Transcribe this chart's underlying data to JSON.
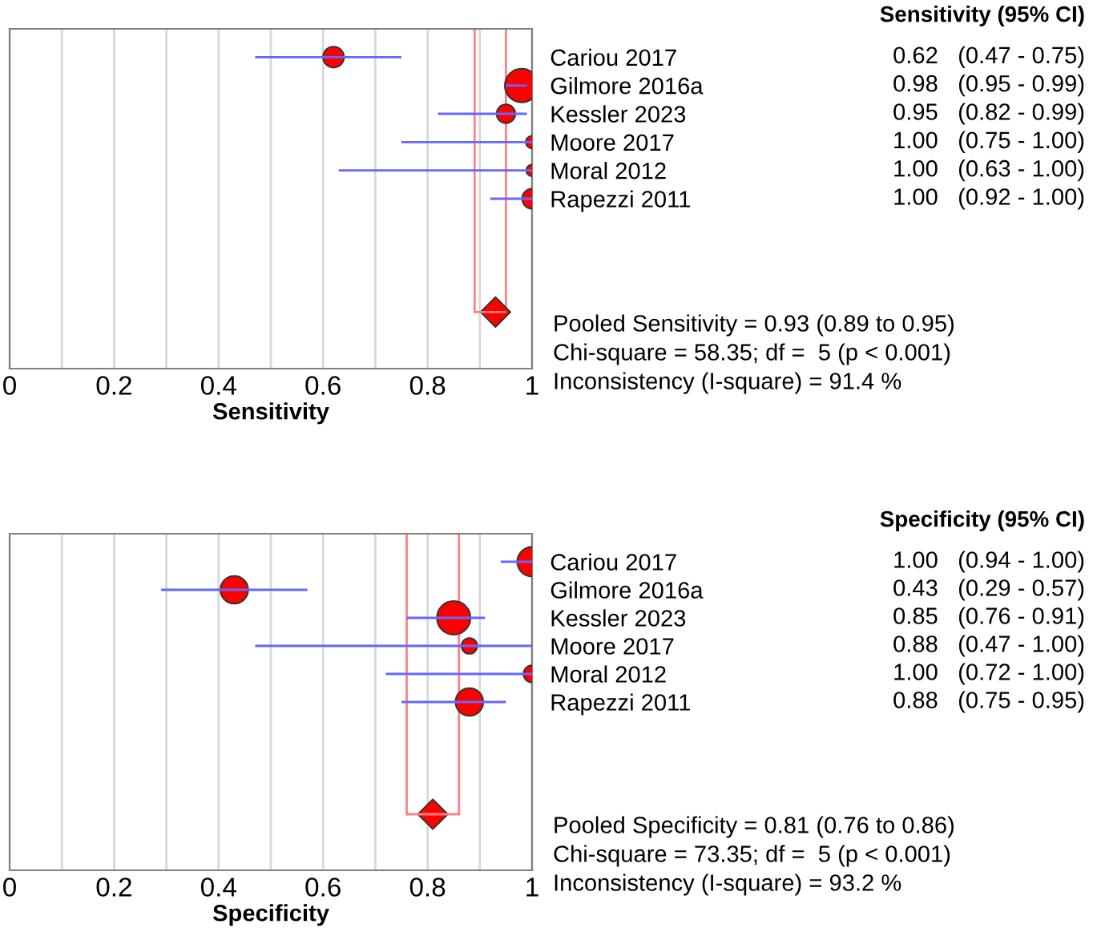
{
  "chart_data": [
    {
      "type": "bubble",
      "orientation": "horizontal",
      "xlabel": "Sensitivity",
      "categories": [
        "Cariou 2017",
        "Gilmore 2016a",
        "Kessler 2023",
        "Moore 2017",
        "Moral 2012",
        "Rapezzi 2011",
        null,
        null,
        null,
        null
      ],
      "xlim": [
        0,
        1
      ],
      "xticks": [
        0,
        {
          "value": 0.1,
          "label": null
        },
        0.2,
        {
          "value": 0.3,
          "label": null
        },
        0.4,
        {
          "value": 0.5,
          "label": null
        },
        0.6,
        {
          "value": 0.7,
          "label": null
        },
        0.8,
        {
          "value": 0.9,
          "label": null
        },
        1
      ],
      "grid": "x",
      "series": [
        {
          "color": "#ff0000",
          "values": [
            0.62,
            0.98,
            0.95,
            1.0,
            1.0,
            1.0,
            null,
            null,
            null,
            null
          ],
          "sizes": [
            0.39,
            1,
            0.31,
            0.14,
            0.12,
            0.35,
            null,
            null,
            null,
            null
          ],
          "errors": [
            [
              0.47,
              0.75
            ],
            [
              0.95,
              0.99
            ],
            [
              0.82,
              0.99
            ],
            [
              0.75,
              1.0
            ],
            [
              0.63,
              1.0
            ],
            [
              0.92,
              1.0
            ],
            null,
            null,
            null,
            null
          ],
          "value_labels": [
            "0.62   (0.47 - 0.75)",
            "0.98   (0.95 - 0.99)",
            "0.95   (0.82 - 0.99)",
            "1.00   (0.75 - 1.00)",
            "1.00   (0.63 - 1.00)",
            "1.00   (0.92 - 1.00)",
            null,
            null,
            null,
            null
          ]
        },
        {
          "type": "scatter",
          "marker": "diamond",
          "color": "#ff0000",
          "values": [
            null,
            null,
            null,
            null,
            null,
            null,
            null,
            null,
            null,
            0.93
          ],
          "errors": [
            null,
            null,
            null,
            null,
            null,
            null,
            null,
            null,
            null,
            [
              0.89,
              0.95
            ]
          ]
        }
      ],
      "ref_lines": [
        {
          "axis": "x",
          "value": 0.89,
          "color": "#ff8080"
        },
        {
          "axis": "x",
          "value": 0.95,
          "color": "#ff8080"
        }
      ],
      "annotations": [
        "Sensitivity (95% CI)",
        "Pooled Sensitivity = 0.93 (0.89 to 0.95)",
        "Chi-square = 58.35; df =  5 (p < 0.001)",
        "Inconsistency (I-square) = 91.4 %"
      ]
    },
    {
      "type": "bubble",
      "orientation": "horizontal",
      "xlabel": "Specificity",
      "categories": [
        "Cariou 2017",
        "Gilmore 2016a",
        "Kessler 2023",
        "Moore 2017",
        "Moral 2012",
        "Rapezzi 2011",
        null,
        null,
        null,
        null
      ],
      "xlim": [
        0,
        1
      ],
      "xticks": [
        0,
        {
          "value": 0.1,
          "label": null
        },
        0.2,
        {
          "value": 0.3,
          "label": null
        },
        0.4,
        {
          "value": 0.5,
          "label": null
        },
        0.6,
        {
          "value": 0.7,
          "label": null
        },
        0.8,
        {
          "value": 0.9,
          "label": null
        },
        1
      ],
      "grid": "x",
      "series": [
        {
          "color": "#ff0000",
          "values": [
            1.0,
            0.43,
            0.85,
            0.88,
            1.0,
            0.88,
            null,
            null,
            null,
            null
          ],
          "sizes": [
            0.78,
            0.68,
            1,
            0.22,
            0.26,
            0.68,
            null,
            null,
            null,
            null
          ],
          "errors": [
            [
              0.94,
              1.0
            ],
            [
              0.29,
              0.57
            ],
            [
              0.76,
              0.91
            ],
            [
              0.47,
              1.0
            ],
            [
              0.72,
              1.0
            ],
            [
              0.75,
              0.95
            ],
            null,
            null,
            null,
            null
          ],
          "value_labels": [
            "1.00   (0.94 - 1.00)",
            "0.43   (0.29 - 0.57)",
            "0.85   (0.76 - 0.91)",
            "0.88   (0.47 - 1.00)",
            "1.00   (0.72 - 1.00)",
            "0.88   (0.75 - 0.95)",
            null,
            null,
            null,
            null
          ]
        },
        {
          "type": "scatter",
          "marker": "diamond",
          "color": "#ff0000",
          "values": [
            null,
            null,
            null,
            null,
            null,
            null,
            null,
            null,
            null,
            0.81
          ],
          "errors": [
            null,
            null,
            null,
            null,
            null,
            null,
            null,
            null,
            null,
            [
              0.76,
              0.86
            ]
          ]
        }
      ],
      "ref_lines": [
        {
          "axis": "x",
          "value": 0.76,
          "color": "#ff8080"
        },
        {
          "axis": "x",
          "value": 0.86,
          "color": "#ff8080"
        }
      ],
      "annotations": [
        "Specificity (95% CI)",
        "Pooled Specificity = 0.81 (0.76 to 0.86)",
        "Chi-square = 73.35; df =  5 (p < 0.001)",
        "Inconsistency (I-square) = 93.2 %"
      ]
    }
  ]
}
